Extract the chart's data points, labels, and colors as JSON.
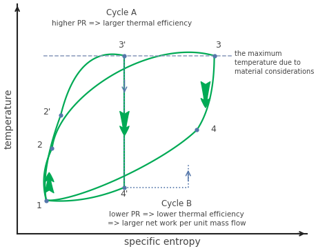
{
  "points": {
    "1": [
      1.0,
      1.2
    ],
    "2": [
      1.1,
      2.6
    ],
    "2p": [
      1.25,
      3.5
    ],
    "3p": [
      2.35,
      5.1
    ],
    "4p": [
      2.35,
      1.55
    ],
    "3": [
      3.9,
      5.1
    ],
    "4": [
      3.6,
      3.1
    ]
  },
  "T_max": 5.1,
  "xlim": [
    0.5,
    5.5
  ],
  "ylim": [
    0.3,
    6.5
  ],
  "colors": {
    "cycle": "#00aa55",
    "dot": "#5577aa",
    "dash": "#8899bb",
    "text": "#444444",
    "bg": "#ffffff",
    "axis": "#222222"
  },
  "annotations": {
    "cycle_A_title": "Cycle A",
    "cycle_A_sub": "higher PR => larger thermal efficiency",
    "cycle_B_title": "Cycle B",
    "cycle_B_sub1": "lower PR => lower thermal efficiency",
    "cycle_B_sub2": "=> larger net work per unit mass flow",
    "max_temp_line": "the maximum\ntemperature due to\nmaterial considerations",
    "xlabel": "specific entropy",
    "ylabel": "temperature"
  },
  "figsize": [
    4.74,
    3.64
  ],
  "dpi": 100
}
